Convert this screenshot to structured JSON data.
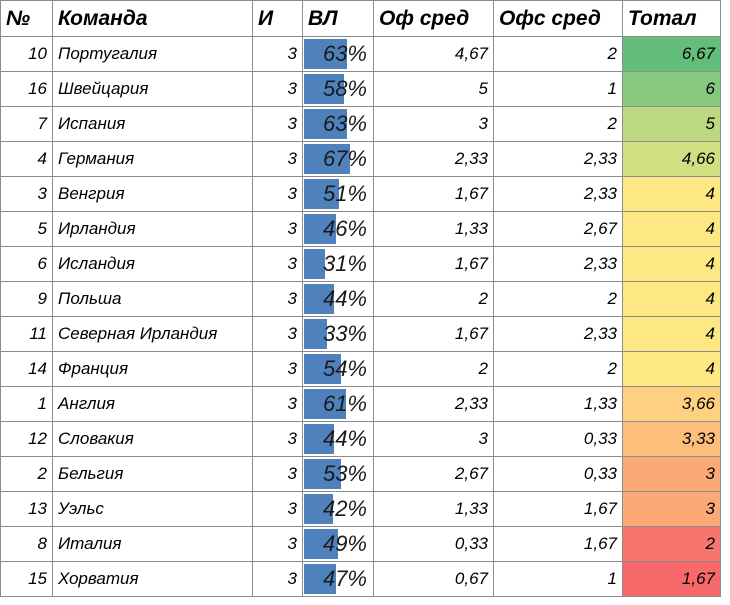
{
  "headers": {
    "num": "№",
    "team": "Команда",
    "games": "И",
    "vl": "ВЛ",
    "of_avg": "Оф сред",
    "ofs_avg": "Офс сред",
    "total": "Тотал"
  },
  "colors": {
    "bar": "#4f81bd",
    "grid": "#8c8c8c"
  },
  "rows": [
    {
      "num": "10",
      "team": "Португалия",
      "games": "3",
      "vl": "63%",
      "vl_value": 0.63,
      "of": "4,67",
      "ofs": "2",
      "total": "6,67",
      "total_color": "#63be7b"
    },
    {
      "num": "16",
      "team": "Швейцария",
      "games": "3",
      "vl": "58%",
      "vl_value": 0.58,
      "of": "5",
      "ofs": "1",
      "total": "6",
      "total_color": "#86c97e"
    },
    {
      "num": "7",
      "team": "Испания",
      "games": "3",
      "vl": "63%",
      "vl_value": 0.63,
      "of": "3",
      "ofs": "2",
      "total": "5",
      "total_color": "#bcd981"
    },
    {
      "num": "4",
      "team": "Германия",
      "games": "3",
      "vl": "67%",
      "vl_value": 0.67,
      "of": "2,33",
      "ofs": "2,33",
      "total": "4,66",
      "total_color": "#cfdf82"
    },
    {
      "num": "3",
      "team": "Венгрия",
      "games": "3",
      "vl": "51%",
      "vl_value": 0.51,
      "of": "1,67",
      "ofs": "2,33",
      "total": "4",
      "total_color": "#fee883"
    },
    {
      "num": "5",
      "team": "Ирландия",
      "games": "3",
      "vl": "46%",
      "vl_value": 0.46,
      "of": "1,33",
      "ofs": "2,67",
      "total": "4",
      "total_color": "#fee883"
    },
    {
      "num": "6",
      "team": "Исландия",
      "games": "3",
      "vl": "31%",
      "vl_value": 0.31,
      "of": "1,67",
      "ofs": "2,33",
      "total": "4",
      "total_color": "#fee883"
    },
    {
      "num": "9",
      "team": "Польша",
      "games": "3",
      "vl": "44%",
      "vl_value": 0.44,
      "of": "2",
      "ofs": "2",
      "total": "4",
      "total_color": "#fee883"
    },
    {
      "num": "11",
      "team": "Северная Ирландия",
      "games": "3",
      "vl": "33%",
      "vl_value": 0.33,
      "of": "1,67",
      "ofs": "2,33",
      "total": "4",
      "total_color": "#fee883"
    },
    {
      "num": "14",
      "team": "Франция",
      "games": "3",
      "vl": "54%",
      "vl_value": 0.54,
      "of": "2",
      "ofs": "2",
      "total": "4",
      "total_color": "#fee883"
    },
    {
      "num": "1",
      "team": "Англия",
      "games": "3",
      "vl": "61%",
      "vl_value": 0.61,
      "of": "2,33",
      "ofs": "1,33",
      "total": "3,66",
      "total_color": "#fdd17f"
    },
    {
      "num": "12",
      "team": "Словакия",
      "games": "3",
      "vl": "44%",
      "vl_value": 0.44,
      "of": "3",
      "ofs": "0,33",
      "total": "3,33",
      "total_color": "#fcbf7b"
    },
    {
      "num": "2",
      "team": "Бельгия",
      "games": "3",
      "vl": "53%",
      "vl_value": 0.53,
      "of": "2,67",
      "ofs": "0,33",
      "total": "3",
      "total_color": "#fbaa77"
    },
    {
      "num": "13",
      "team": "Уэльс",
      "games": "3",
      "vl": "42%",
      "vl_value": 0.42,
      "of": "1,33",
      "ofs": "1,67",
      "total": "3",
      "total_color": "#fbaa77"
    },
    {
      "num": "8",
      "team": "Италия",
      "games": "3",
      "vl": "49%",
      "vl_value": 0.49,
      "of": "0,33",
      "ofs": "1,67",
      "total": "2",
      "total_color": "#f8756d"
    },
    {
      "num": "15",
      "team": "Хорватия",
      "games": "3",
      "vl": "47%",
      "vl_value": 0.47,
      "of": "0,67",
      "ofs": "1",
      "total": "1,67",
      "total_color": "#f8696b"
    }
  ]
}
